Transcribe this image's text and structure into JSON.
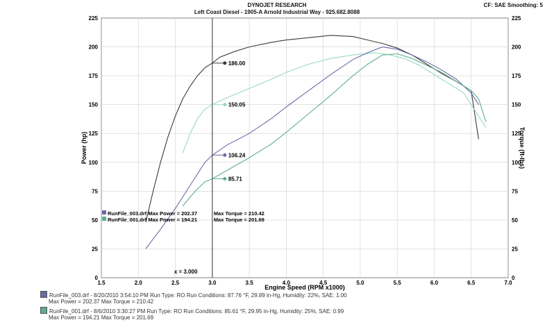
{
  "header": {
    "title": "DYNOJET RESEARCH",
    "subtitle": "Left Coast Diesel - 1905-A Arnold Industrial Way - 925.682.8088",
    "settings": "CF: SAE  Smoothing: 5"
  },
  "colors": {
    "run003": "#6a6aa8",
    "run001": "#5fae8c",
    "run003_torque": "#3a3a3a",
    "run001_torque": "#9ad8c4"
  },
  "legend": [
    {
      "line1": "RunFile_003.drf - 8/20/2010 3:54:10 PM  Run Type: RO  Run Conditions: 87.76 °F, 29.89 in-Hg,  Humidity:  22%, SAE: 1.00",
      "line2": "Max Power = 202.37   Max Torque = 210.42"
    },
    {
      "line1": "RunFile_001.drf - 8/6/2010 3:30:27 PM  Run Type: RO  Run Conditions: 85.61 °F, 29.95 in-Hg,  Humidity:  25%, SAE: 0.99",
      "line2": "Max Power = 194.21   Max Torque = 201.69"
    }
  ],
  "chart_data": {
    "type": "line",
    "xlabel": "Engine Speed (RPM x1000)",
    "ylabel_left": "Power (hp)",
    "ylabel_right": "Torque (ft-lbs)",
    "xlim": [
      1.5,
      7.0
    ],
    "ylim": [
      0,
      225
    ],
    "xticks": [
      "1.5",
      "2.0",
      "2.5",
      "3.0",
      "3.5",
      "4.0",
      "4.5",
      "5.0",
      "5.5",
      "6.0",
      "6.5",
      "7.0"
    ],
    "yticks": [
      "0",
      "25",
      "50",
      "75",
      "100",
      "125",
      "150",
      "175",
      "200",
      "225"
    ],
    "cursor": {
      "x": 3.0,
      "label": "x = 3.000"
    },
    "cursor_values": [
      {
        "label": "186.00",
        "y": 186.0,
        "color": "run003_torque"
      },
      {
        "label": "150.05",
        "y": 150.05,
        "color": "run001_torque"
      },
      {
        "label": "106.24",
        "y": 106.24,
        "color": "run003"
      },
      {
        "label": "85.71",
        "y": 85.71,
        "color": "run001"
      }
    ],
    "inline_legend": [
      {
        "power": "RunFile_003.drf Max Power = 202.37",
        "torque": "Max Torque = 210.42",
        "color": "run003"
      },
      {
        "power": "RunFile_001.drf Max Power = 194.21",
        "torque": "Max Torque = 201.69",
        "color": "run001"
      }
    ],
    "series": [
      {
        "id": "run003_torque",
        "color": "run003_torque",
        "x": [
          2.1,
          2.2,
          2.3,
          2.4,
          2.5,
          2.6,
          2.7,
          2.8,
          2.9,
          3.0,
          3.1,
          3.3,
          3.5,
          3.8,
          4.0,
          4.3,
          4.6,
          4.9,
          5.1,
          5.3,
          5.5,
          5.7,
          5.9,
          6.1,
          6.3,
          6.5,
          6.6
        ],
        "y": [
          48,
          75,
          100,
          122,
          140,
          155,
          166,
          175,
          182,
          186,
          191,
          196,
          200,
          204,
          206,
          208,
          210,
          209,
          206,
          203,
          199,
          193,
          185,
          177,
          170,
          162,
          120
        ]
      },
      {
        "id": "run001_torque",
        "color": "run001_torque",
        "x": [
          2.6,
          2.7,
          2.8,
          2.9,
          3.0,
          3.2,
          3.5,
          3.8,
          4.0,
          4.3,
          4.6,
          4.9,
          5.2,
          5.4,
          5.6,
          5.8,
          6.0,
          6.2,
          6.4,
          6.5,
          6.6,
          6.7
        ],
        "y": [
          108,
          125,
          138,
          146,
          150,
          156,
          164,
          172,
          178,
          185,
          190,
          193,
          195,
          193,
          190,
          184,
          176,
          168,
          160,
          150,
          140,
          130
        ]
      },
      {
        "id": "run003_power",
        "color": "run003",
        "x": [
          2.1,
          2.3,
          2.5,
          2.7,
          2.9,
          3.0,
          3.2,
          3.5,
          3.8,
          4.0,
          4.3,
          4.6,
          4.9,
          5.1,
          5.3,
          5.5,
          5.7,
          5.9,
          6.1,
          6.3,
          6.5,
          6.6
        ],
        "y": [
          25,
          42,
          60,
          80,
          100,
          106.24,
          115,
          125,
          138,
          148,
          162,
          176,
          189,
          195,
          200,
          198,
          193,
          187,
          180,
          172,
          160,
          150
        ]
      },
      {
        "id": "run001_power",
        "color": "run001",
        "x": [
          2.6,
          2.7,
          2.8,
          2.9,
          3.0,
          3.2,
          3.5,
          3.8,
          4.0,
          4.3,
          4.6,
          4.9,
          5.1,
          5.3,
          5.5,
          5.7,
          5.9,
          6.1,
          6.3,
          6.5,
          6.6,
          6.7
        ],
        "y": [
          62,
          70,
          77,
          83,
          85.71,
          93,
          104,
          116,
          126,
          142,
          158,
          175,
          185,
          193,
          194,
          190,
          184,
          178,
          170,
          162,
          155,
          135
        ]
      }
    ]
  }
}
